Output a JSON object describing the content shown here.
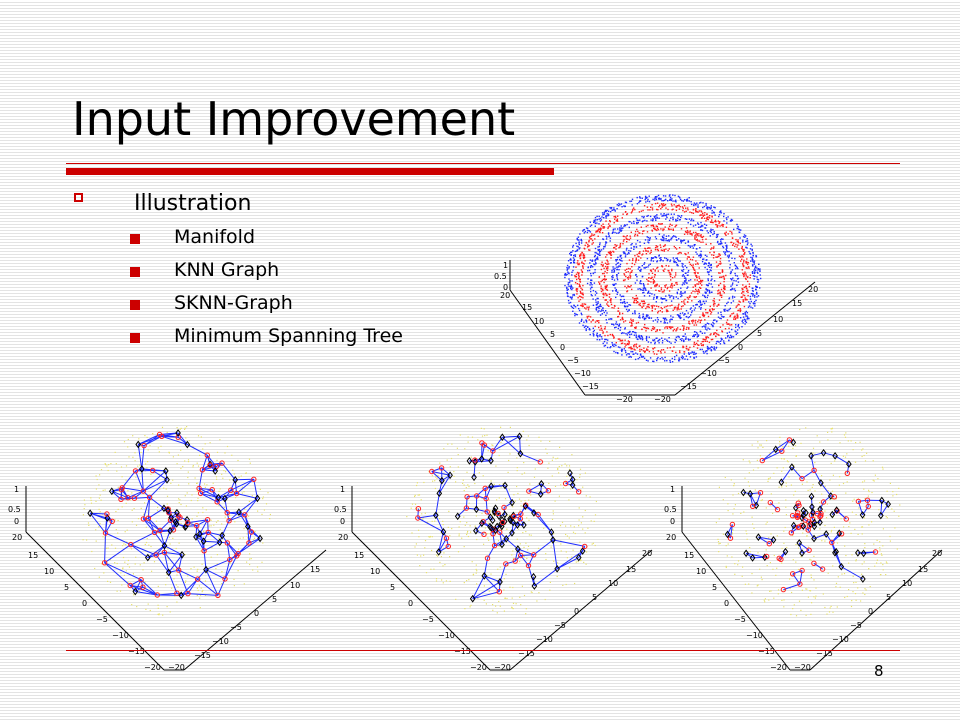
{
  "slide": {
    "title": "Input Improvement",
    "slide_number": "8",
    "accent_color": "#cc0000"
  },
  "bullets": {
    "main": "Illustration",
    "sub": [
      "Manifold",
      "KNN Graph",
      "SKNN-Graph",
      "Minimum Spanning Tree"
    ]
  },
  "figures": {
    "manifold": {
      "z_ticks": [
        "1",
        "0.5",
        "0"
      ],
      "y_ticks": [
        "20",
        "15",
        "10",
        "5",
        "0",
        "−5",
        "−10",
        "−15",
        "−20"
      ],
      "x_ticks": [
        "20",
        "15",
        "10",
        "5",
        "0",
        "−5",
        "−10",
        "−15",
        "−20"
      ],
      "point_colors": [
        "#1f2dff",
        "#ff2020"
      ]
    },
    "graphs": [
      {
        "name": "KNN Graph",
        "z_ticks": [
          "1",
          "0.5",
          "0"
        ],
        "y_ticks": [
          "20",
          "15",
          "10",
          "5",
          "0",
          "−5",
          "−10",
          "−15",
          "−20"
        ],
        "x_ticks": [
          "15",
          "10",
          "5",
          "0",
          "−5",
          "−10",
          "−15",
          "−20"
        ]
      },
      {
        "name": "SKNN-Graph",
        "z_ticks": [
          "1",
          "0.5",
          "0"
        ],
        "y_ticks": [
          "20",
          "15",
          "10",
          "5",
          "0",
          "−5",
          "−10",
          "−15",
          "−20"
        ],
        "x_ticks": [
          "20",
          "15",
          "10",
          "5",
          "0",
          "−5",
          "−10",
          "−15",
          "−20"
        ]
      },
      {
        "name": "Minimum Spanning Tree",
        "z_ticks": [
          "1",
          "0.5",
          "0"
        ],
        "y_ticks": [
          "20",
          "15",
          "10",
          "5",
          "0",
          "−5",
          "−10",
          "−15",
          "−20"
        ],
        "x_ticks": [
          "20",
          "15",
          "10",
          "5",
          "0",
          "−5",
          "−10",
          "−15",
          "−20"
        ]
      }
    ],
    "edge_color": "#1f2dff",
    "red_node_color": "#ff2020",
    "black_node_color": "#000000",
    "background_dot_color": "#e8e26a"
  }
}
